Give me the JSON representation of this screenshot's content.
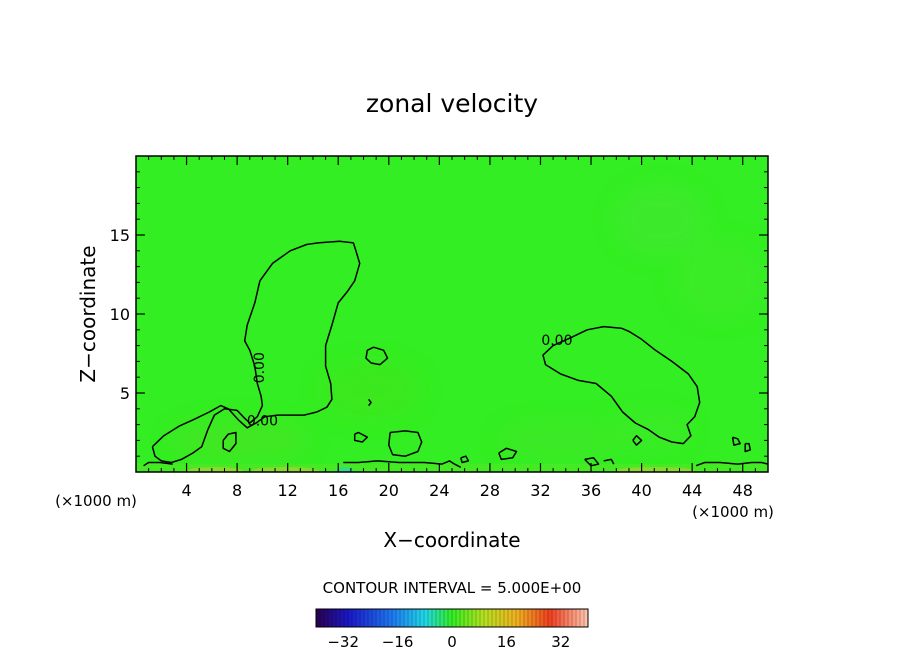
{
  "chart_data": {
    "type": "heatmap",
    "title": "zonal velocity",
    "xlabel": "X−coordinate",
    "ylabel": "Z−coordinate",
    "x_unit_left": "(×1000 m)",
    "x_unit_right": "(×1000 m)",
    "xlim": [
      0,
      50
    ],
    "ylim": [
      0,
      20
    ],
    "x_ticks": [
      4,
      8,
      12,
      16,
      20,
      24,
      28,
      32,
      36,
      40,
      44,
      48
    ],
    "x_tick_labels": [
      "4",
      "8",
      "12",
      "16",
      "20",
      "24",
      "28",
      "32",
      "36",
      "40",
      "44",
      "48"
    ],
    "y_ticks": [
      5,
      10,
      15
    ],
    "y_tick_labels": [
      "5",
      "10",
      "15"
    ],
    "contour_interval_text": "CONTOUR INTERVAL = 5.000E+00",
    "contour_level": 0,
    "contour_labels": [
      {
        "text": "0.00",
        "x": 10.0,
        "z": 3.2
      },
      {
        "text": "0.00",
        "x": 33.3,
        "z": 8.3
      },
      {
        "text": "0.00",
        "x": 9.8,
        "z": 6.6
      }
    ],
    "colorbar": {
      "min": -40,
      "max": 40,
      "tick_values": [
        -32,
        -16,
        0,
        16,
        32
      ],
      "tick_labels": [
        "−32",
        "−16",
        "0",
        "16",
        "32"
      ]
    },
    "field_color": "#33ee22",
    "contour_color": "#000000",
    "contours": [
      [
        [
          1.3,
          1.6
        ],
        [
          2.2,
          2.3
        ],
        [
          3.4,
          2.9
        ],
        [
          4.5,
          3.3
        ],
        [
          5.8,
          3.8
        ],
        [
          6.7,
          4.2
        ],
        [
          7.3,
          4.0
        ],
        [
          8.1,
          3.3
        ],
        [
          8.8,
          2.8
        ],
        [
          9.5,
          3.1
        ],
        [
          10.2,
          3.5
        ],
        [
          11.2,
          3.6
        ],
        [
          12.4,
          3.6
        ],
        [
          13.3,
          3.6
        ],
        [
          14.3,
          3.8
        ],
        [
          15.1,
          4.1
        ],
        [
          15.5,
          4.6
        ],
        [
          15.4,
          5.6
        ],
        [
          15.0,
          6.7
        ],
        [
          15.0,
          8.0
        ],
        [
          15.5,
          9.3
        ],
        [
          16.0,
          10.7
        ],
        [
          16.7,
          11.4
        ],
        [
          17.3,
          12.1
        ],
        [
          17.7,
          13.2
        ],
        [
          17.4,
          14.0
        ],
        [
          17.2,
          14.5
        ],
        [
          16.1,
          14.6
        ],
        [
          14.4,
          14.5
        ],
        [
          13.5,
          14.4
        ],
        [
          12.2,
          14.0
        ],
        [
          10.8,
          13.2
        ],
        [
          9.8,
          12.1
        ],
        [
          9.4,
          10.7
        ],
        [
          8.8,
          9.3
        ],
        [
          8.6,
          8.3
        ],
        [
          9.0,
          7.7
        ],
        [
          9.4,
          6.7
        ],
        [
          9.6,
          5.6
        ],
        [
          9.9,
          4.8
        ],
        [
          10.0,
          4.2
        ],
        [
          9.6,
          3.5
        ],
        [
          9.0,
          3.1
        ],
        [
          8.6,
          3.4
        ],
        [
          8.0,
          3.9
        ],
        [
          7.0,
          4.0
        ],
        [
          6.2,
          3.6
        ],
        [
          5.7,
          2.7
        ],
        [
          5.2,
          1.6
        ],
        [
          4.5,
          1.2
        ],
        [
          3.6,
          0.8
        ],
        [
          2.8,
          0.6
        ],
        [
          2.0,
          0.7
        ],
        [
          1.5,
          1.0
        ],
        [
          1.3,
          1.6
        ]
      ],
      [
        [
          38.4,
          9.1
        ],
        [
          37.0,
          9.2
        ],
        [
          35.7,
          9.0
        ],
        [
          34.4,
          8.5
        ],
        [
          33.0,
          8.0
        ],
        [
          32.2,
          7.4
        ],
        [
          32.4,
          6.8
        ],
        [
          33.6,
          6.2
        ],
        [
          35.0,
          5.8
        ],
        [
          36.4,
          5.6
        ],
        [
          37.6,
          4.8
        ],
        [
          38.5,
          3.8
        ],
        [
          39.5,
          3.1
        ],
        [
          40.5,
          2.7
        ],
        [
          41.4,
          2.2
        ],
        [
          42.4,
          1.9
        ],
        [
          43.3,
          1.8
        ],
        [
          43.9,
          2.3
        ],
        [
          43.6,
          3.0
        ],
        [
          44.2,
          3.5
        ],
        [
          44.6,
          4.4
        ],
        [
          44.4,
          5.4
        ],
        [
          43.7,
          6.2
        ],
        [
          42.4,
          7.0
        ],
        [
          41.1,
          7.7
        ],
        [
          40.0,
          8.4
        ],
        [
          39.0,
          8.9
        ],
        [
          38.4,
          9.1
        ]
      ],
      [
        [
          18.8,
          7.9
        ],
        [
          18.3,
          7.7
        ],
        [
          18.2,
          7.2
        ],
        [
          18.6,
          6.9
        ],
        [
          19.3,
          6.8
        ],
        [
          19.9,
          7.2
        ],
        [
          19.6,
          7.7
        ],
        [
          18.8,
          7.9
        ]
      ],
      [
        [
          20.1,
          2.5
        ],
        [
          21.3,
          2.6
        ],
        [
          22.3,
          2.5
        ],
        [
          22.6,
          1.9
        ],
        [
          22.3,
          1.3
        ],
        [
          21.3,
          1.0
        ],
        [
          20.3,
          1.1
        ],
        [
          20.0,
          1.7
        ],
        [
          20.1,
          2.5
        ]
      ],
      [
        [
          6.9,
          2.0
        ],
        [
          7.3,
          2.4
        ],
        [
          7.9,
          2.5
        ],
        [
          7.9,
          1.8
        ],
        [
          7.4,
          1.3
        ],
        [
          6.9,
          1.5
        ],
        [
          6.9,
          2.0
        ]
      ],
      [
        [
          17.3,
          2.4
        ],
        [
          17.6,
          2.5
        ],
        [
          18.3,
          2.2
        ],
        [
          17.9,
          1.9
        ],
        [
          17.3,
          2.0
        ],
        [
          17.3,
          2.4
        ]
      ],
      [
        [
          28.7,
          1.2
        ],
        [
          29.3,
          1.5
        ],
        [
          30.1,
          1.3
        ],
        [
          29.8,
          0.9
        ],
        [
          28.9,
          0.8
        ],
        [
          28.7,
          1.2
        ]
      ],
      [
        [
          39.3,
          2.0
        ],
        [
          39.6,
          2.3
        ],
        [
          40.0,
          2.0
        ],
        [
          39.6,
          1.7
        ],
        [
          39.3,
          2.0
        ]
      ],
      [
        [
          47.2,
          2.2
        ],
        [
          47.6,
          2.1
        ],
        [
          47.8,
          1.8
        ],
        [
          47.3,
          1.7
        ],
        [
          47.2,
          2.2
        ]
      ],
      [
        [
          48.2,
          1.8
        ],
        [
          48.5,
          1.8
        ],
        [
          48.6,
          1.4
        ],
        [
          48.2,
          1.3
        ],
        [
          48.2,
          1.8
        ]
      ],
      [
        [
          25.7,
          0.9
        ],
        [
          26.1,
          1.0
        ],
        [
          26.3,
          0.7
        ],
        [
          25.8,
          0.6
        ],
        [
          25.7,
          0.9
        ]
      ],
      [
        [
          16.4,
          0.6
        ],
        [
          17.6,
          0.6
        ],
        [
          19.1,
          0.7
        ],
        [
          20.8,
          0.6
        ],
        [
          22.8,
          0.6
        ],
        [
          24.2,
          0.5
        ],
        [
          24.8,
          0.7
        ],
        [
          25.2,
          0.5
        ],
        [
          25.7,
          0.3
        ]
      ],
      [
        [
          0.6,
          0.4
        ],
        [
          1.0,
          0.6
        ],
        [
          1.9,
          0.6
        ],
        [
          2.9,
          0.5
        ]
      ],
      [
        [
          35.5,
          0.8
        ],
        [
          36.2,
          0.9
        ],
        [
          36.6,
          0.5
        ],
        [
          36.0,
          0.4
        ],
        [
          35.5,
          0.8
        ]
      ],
      [
        [
          37.0,
          0.7
        ],
        [
          37.6,
          0.8
        ],
        [
          37.8,
          0.5
        ]
      ],
      [
        [
          44.3,
          0.4
        ],
        [
          45.0,
          0.6
        ],
        [
          46.2,
          0.6
        ],
        [
          47.6,
          0.5
        ],
        [
          48.7,
          0.6
        ],
        [
          49.5,
          0.6
        ],
        [
          50,
          0.5
        ]
      ],
      [
        [
          18.4,
          4.6
        ],
        [
          18.6,
          4.4
        ],
        [
          18.4,
          4.2
        ]
      ]
    ]
  }
}
